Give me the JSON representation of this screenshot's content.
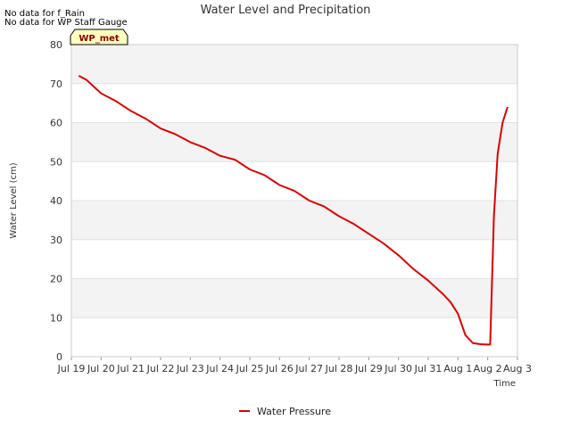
{
  "notes": [
    "No data for f_Rain",
    "No data for WP Staff Gauge"
  ],
  "badge": "WP_met",
  "chart_data": {
    "type": "line",
    "title": "Water Level and Precipitation",
    "xlabel": "Time",
    "ylabel": "Water Level (cm)",
    "ylim": [
      0,
      80
    ],
    "yticks": [
      0,
      10,
      20,
      30,
      40,
      50,
      60,
      70,
      80
    ],
    "xlim": [
      "2024-07-19",
      "2024-08-03"
    ],
    "xticks": [
      "Jul 19",
      "Jul 20",
      "Jul 21",
      "Jul 22",
      "Jul 23",
      "Jul 24",
      "Jul 25",
      "Jul 26",
      "Jul 27",
      "Jul 28",
      "Jul 29",
      "Jul 30",
      "Jul 31",
      "Aug 1",
      "Aug 2",
      "Aug 3"
    ],
    "grid": true,
    "legend_position": "bottom-center",
    "series": [
      {
        "name": "Water Pressure",
        "color": "#dd0000",
        "x": [
          "2024-07-19T06:00",
          "2024-07-19T12:00",
          "2024-07-20T00:00",
          "2024-07-20T12:00",
          "2024-07-21T00:00",
          "2024-07-21T12:00",
          "2024-07-22T00:00",
          "2024-07-22T12:00",
          "2024-07-23T00:00",
          "2024-07-23T12:00",
          "2024-07-24T00:00",
          "2024-07-24T12:00",
          "2024-07-25T00:00",
          "2024-07-25T12:00",
          "2024-07-26T00:00",
          "2024-07-26T12:00",
          "2024-07-27T00:00",
          "2024-07-27T12:00",
          "2024-07-28T00:00",
          "2024-07-28T12:00",
          "2024-07-29T00:00",
          "2024-07-29T12:00",
          "2024-07-30T00:00",
          "2024-07-30T12:00",
          "2024-07-31T00:00",
          "2024-07-31T12:00",
          "2024-07-31T18:00",
          "2024-08-01T00:00",
          "2024-08-01T06:00",
          "2024-08-01T12:00",
          "2024-08-01T18:00",
          "2024-08-02T00:00",
          "2024-08-02T02:00",
          "2024-08-02T05:00",
          "2024-08-02T08:00",
          "2024-08-02T12:00",
          "2024-08-02T16:00"
        ],
        "y": [
          72,
          71,
          67.5,
          65.5,
          63,
          61,
          58.5,
          57,
          55,
          53.5,
          51.5,
          50.5,
          48,
          46.5,
          44,
          42.5,
          40,
          38.5,
          36,
          34,
          31.5,
          29,
          26,
          22.5,
          19.5,
          16,
          14,
          11,
          5.5,
          3.5,
          3.2,
          3.1,
          3.1,
          36,
          52,
          60,
          64
        ]
      }
    ]
  }
}
